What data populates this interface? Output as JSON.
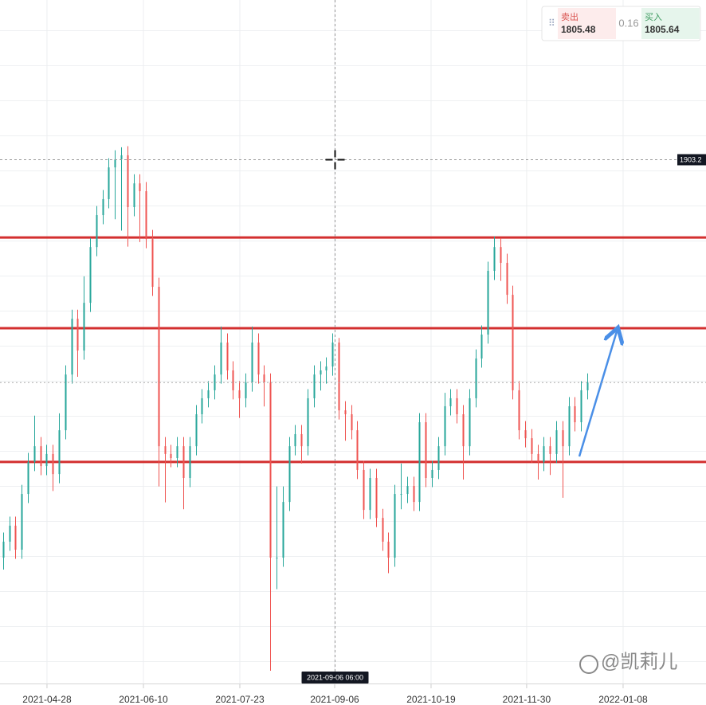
{
  "chart_data": {
    "type": "ohlc",
    "xlim": [
      0,
      113.6
    ],
    "xticks": [
      {
        "value": 7.56,
        "label": "2021-04-28"
      },
      {
        "value": 23.08,
        "label": "2021-06-10"
      },
      {
        "value": 38.59,
        "label": "2021-07-23"
      },
      {
        "value": 53.85,
        "label": "2021-09-06"
      },
      {
        "value": 69.36,
        "label": "2021-10-19"
      },
      {
        "value": 84.74,
        "label": "2021-11-30"
      },
      {
        "value": 100.26,
        "label": "2022-01-08"
      }
    ],
    "ylim": [
      1673,
      1973
    ],
    "open": [
      1728.8,
      1735.8,
      1742.8,
      1732.3,
      1756.7,
      1770.7,
      1777.6,
      1768.9,
      1774.2,
      1765.4,
      1784.6,
      1809.0,
      1833.4,
      1819.5,
      1840.4,
      1864.8,
      1878.8,
      1885.8,
      1899.7,
      1903.2,
      1905.0,
      1882.3,
      1892.7,
      1889.3,
      1868.3,
      1847.4,
      1777.6,
      1774.2,
      1772.4,
      1777.6,
      1763.7,
      1777.6,
      1791.6,
      1798.6,
      1802.1,
      1809.0,
      1823.0,
      1810.8,
      1802.1,
      1798.6,
      1805.5,
      1823.0,
      1809.0,
      1805.5,
      1728.8,
      1728.8,
      1753.2,
      1777.6,
      1782.9,
      1777.6,
      1798.6,
      1809.0,
      1810.8,
      1812.5,
      1823.0,
      1793.3,
      1791.6,
      1784.6,
      1767.2,
      1749.7,
      1763.7,
      1746.2,
      1735.8,
      1728.8,
      1756.7,
      1756.7,
      1760.2,
      1753.2,
      1788.1,
      1763.7,
      1767.2,
      1777.6,
      1795.1,
      1798.6,
      1791.6,
      1777.6,
      1798.6,
      1816.0,
      1826.5,
      1854.4,
      1864.8,
      1857.9,
      1843.9,
      1802.1,
      1784.6,
      1781.1,
      1774.2,
      1770.7,
      1777.6,
      1774.2,
      1784.6,
      1777.6,
      1795.1,
      1788.1,
      1802.1
    ],
    "high": [
      1739.8,
      1746.8,
      1746.8,
      1760.7,
      1774.7,
      1791.0,
      1781.6,
      1778.2,
      1778.2,
      1792.0,
      1813.0,
      1837.4,
      1837.4,
      1852.0,
      1868.8,
      1882.8,
      1889.8,
      1903.7,
      1907.2,
      1908.5,
      1909.0,
      1896.7,
      1896.7,
      1893.3,
      1872.3,
      1851.4,
      1781.6,
      1778.2,
      1781.6,
      1781.6,
      1781.6,
      1795.6,
      1802.6,
      1806.1,
      1813.0,
      1830.0,
      1827.0,
      1814.8,
      1806.1,
      1809.5,
      1830.0,
      1827.0,
      1813.0,
      1809.5,
      1760.0,
      1760.0,
      1781.6,
      1786.9,
      1786.9,
      1802.6,
      1813.0,
      1814.8,
      1816.5,
      1827.0,
      1825.0,
      1797.3,
      1795.6,
      1788.6,
      1771.2,
      1767.7,
      1767.7,
      1750.2,
      1739.8,
      1760.7,
      1770.0,
      1764.2,
      1764.2,
      1792.1,
      1792.1,
      1771.2,
      1781.6,
      1801.0,
      1802.6,
      1802.6,
      1795.6,
      1802.6,
      1820.0,
      1830.5,
      1858.4,
      1869.5,
      1868.8,
      1861.9,
      1847.9,
      1806.1,
      1788.6,
      1785.1,
      1778.2,
      1781.6,
      1781.6,
      1788.6,
      1788.6,
      1799.1,
      1799.1,
      1806.1,
      1809.5
    ],
    "low": [
      1723.6,
      1731.8,
      1728.3,
      1728.3,
      1752.7,
      1766.7,
      1764.9,
      1764.9,
      1758.0,
      1761.4,
      1780.6,
      1805.0,
      1808.0,
      1815.5,
      1836.4,
      1860.8,
      1874.8,
      1881.8,
      1877.0,
      1872.0,
      1865.0,
      1878.3,
      1867.0,
      1864.3,
      1843.4,
      1760.0,
      1753.0,
      1768.4,
      1768.4,
      1750.0,
      1759.7,
      1773.6,
      1787.6,
      1794.6,
      1798.1,
      1805.0,
      1806.8,
      1798.1,
      1790.0,
      1794.6,
      1801.5,
      1805.0,
      1795.0,
      1679.3,
      1715.0,
      1724.8,
      1749.2,
      1773.6,
      1770.0,
      1773.6,
      1794.6,
      1802.0,
      1805.0,
      1808.5,
      1789.3,
      1780.0,
      1780.6,
      1763.2,
      1745.7,
      1745.7,
      1742.2,
      1731.8,
      1722.0,
      1724.8,
      1750.0,
      1752.7,
      1749.2,
      1749.2,
      1759.7,
      1759.7,
      1763.2,
      1773.6,
      1791.1,
      1787.6,
      1763.0,
      1773.6,
      1794.6,
      1812.0,
      1822.5,
      1850.4,
      1850.0,
      1839.9,
      1798.1,
      1780.6,
      1777.1,
      1770.2,
      1763.0,
      1766.7,
      1765.0,
      1770.2,
      1755.0,
      1773.6,
      1784.1,
      1784.1,
      1798.1
    ],
    "close": [
      1735.8,
      1742.8,
      1732.3,
      1756.7,
      1770.7,
      1777.6,
      1768.9,
      1774.2,
      1765.4,
      1784.6,
      1809.0,
      1833.4,
      1819.5,
      1840.4,
      1864.8,
      1878.8,
      1885.8,
      1899.7,
      1903.2,
      1905.0,
      1882.3,
      1892.7,
      1889.3,
      1868.3,
      1847.4,
      1777.6,
      1774.2,
      1772.4,
      1777.6,
      1763.7,
      1777.6,
      1791.6,
      1798.6,
      1802.1,
      1809.0,
      1823.0,
      1810.8,
      1802.1,
      1798.6,
      1805.5,
      1823.0,
      1809.0,
      1805.5,
      1728.8,
      1728.8,
      1753.2,
      1777.6,
      1782.9,
      1777.6,
      1798.6,
      1809.0,
      1810.8,
      1812.5,
      1823.0,
      1793.3,
      1791.6,
      1784.6,
      1767.2,
      1749.7,
      1763.7,
      1746.2,
      1735.8,
      1728.8,
      1756.7,
      1756.7,
      1760.2,
      1753.2,
      1788.1,
      1763.7,
      1767.2,
      1777.6,
      1795.1,
      1798.6,
      1791.6,
      1777.6,
      1798.6,
      1816.0,
      1826.5,
      1854.4,
      1864.8,
      1857.9,
      1843.9,
      1802.1,
      1784.6,
      1781.1,
      1774.2,
      1770.7,
      1777.6,
      1774.2,
      1784.6,
      1777.6,
      1795.1,
      1788.1,
      1802.1,
      1805.5
    ],
    "up_color": "#26a69a",
    "down_color": "#ef5350",
    "levels": [
      1869,
      1829.3,
      1770.7
    ],
    "level_color": "#d32f2f",
    "crosshair": {
      "x": 53.85,
      "price": 1903.2,
      "label": "2021-09-06 06:00"
    }
  },
  "quote": {
    "sell_label": "卖出",
    "sell": 1805.48,
    "spread": 0.16,
    "buy_label": "买入",
    "buy": 1805.64
  },
  "watermark": "@凯莉儿"
}
